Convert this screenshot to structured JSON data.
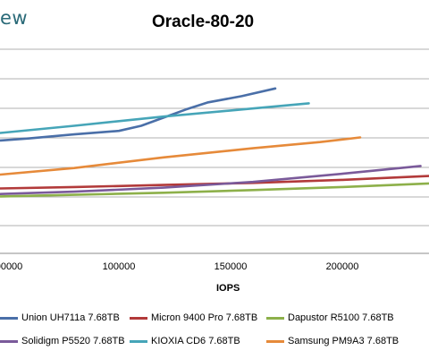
{
  "brand": "ew",
  "chart_data": {
    "type": "line",
    "title": "Oracle-80-20",
    "xlabel": "IOPS",
    "ylabel": "",
    "x_ticks": [
      "100000",
      "150000",
      "200000"
    ],
    "x_tick_values": [
      100000,
      150000,
      200000
    ],
    "x_tick_first_partial": "00000",
    "xlim": [
      47000,
      240000
    ],
    "grid": "horizontal",
    "legend_position": "bottom",
    "series": [
      {
        "name": "Union UH711a 7.68TB",
        "color": "#4a6fa8",
        "points": [
          [
            47000,
            0.553
          ],
          [
            60000,
            0.563
          ],
          [
            80000,
            0.583
          ],
          [
            100000,
            0.6
          ],
          [
            110000,
            0.625
          ],
          [
            120000,
            0.665
          ],
          [
            130000,
            0.705
          ],
          [
            140000,
            0.74
          ],
          [
            155000,
            0.77
          ],
          [
            170000,
            0.808
          ]
        ]
      },
      {
        "name": "Micron 9400 Pro 7.68TB",
        "color": "#b23a3a",
        "points": [
          [
            47000,
            0.318
          ],
          [
            80000,
            0.325
          ],
          [
            120000,
            0.335
          ],
          [
            160000,
            0.345
          ],
          [
            200000,
            0.36
          ],
          [
            240000,
            0.38
          ]
        ]
      },
      {
        "name": "Dapustor R5100 7.68TB",
        "color": "#8db04a",
        "points": [
          [
            47000,
            0.279
          ],
          [
            80000,
            0.287
          ],
          [
            120000,
            0.297
          ],
          [
            160000,
            0.31
          ],
          [
            200000,
            0.325
          ],
          [
            240000,
            0.343
          ]
        ]
      },
      {
        "name": "Solidigm P5520 7.68TB",
        "color": "#7a5a9a",
        "points": [
          [
            47000,
            0.291
          ],
          [
            80000,
            0.302
          ],
          [
            120000,
            0.322
          ],
          [
            160000,
            0.35
          ],
          [
            200000,
            0.39
          ],
          [
            235000,
            0.428
          ]
        ]
      },
      {
        "name": "KIOXIA CD6 7.68TB",
        "color": "#46a5b8",
        "points": [
          [
            47000,
            0.59
          ],
          [
            80000,
            0.625
          ],
          [
            120000,
            0.67
          ],
          [
            150000,
            0.7
          ],
          [
            185000,
            0.735
          ]
        ]
      },
      {
        "name": "Samsung PM9A3 7.68TB",
        "color": "#e68a3a",
        "points": [
          [
            47000,
            0.386
          ],
          [
            80000,
            0.418
          ],
          [
            120000,
            0.47
          ],
          [
            160000,
            0.515
          ],
          [
            190000,
            0.545
          ],
          [
            208000,
            0.568
          ]
        ]
      }
    ]
  }
}
